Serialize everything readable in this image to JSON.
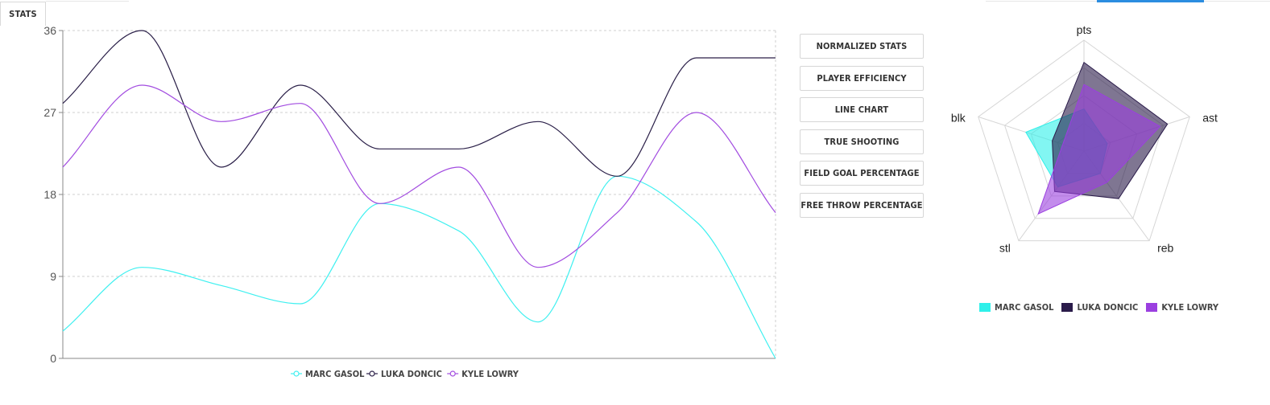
{
  "tabs": {
    "stats_label": "STATS"
  },
  "buttons": [
    "NORMALIZED STATS",
    "PLAYER EFFICIENCY",
    "LINE CHART",
    "TRUE SHOOTING",
    "FIELD GOAL PERCENTAGE",
    "FREE THROW PERCENTAGE"
  ],
  "chart_data": [
    {
      "type": "line",
      "ylim": [
        0,
        36
      ],
      "y_ticks": [
        "0",
        "9",
        "18",
        "27",
        "36"
      ],
      "x": [
        0,
        1,
        2,
        3,
        4,
        5,
        6,
        7,
        8,
        9
      ],
      "grid": true,
      "legend": "bottom",
      "series": [
        {
          "name": "MARC GASOL",
          "color": "#3ff0f0",
          "values": [
            3,
            10,
            8,
            6,
            17,
            14,
            4,
            20,
            15,
            0
          ]
        },
        {
          "name": "LUKA DONCIC",
          "color": "#2a1f48",
          "values": [
            28,
            36,
            21,
            30,
            23,
            23,
            26,
            20,
            33,
            33
          ]
        },
        {
          "name": "KYLE LOWRY",
          "color": "#a24ce0",
          "values": [
            21,
            30,
            26,
            28,
            17,
            21,
            10,
            16,
            27,
            16
          ]
        }
      ]
    },
    {
      "type": "radar",
      "axes": [
        "pts",
        "ast",
        "reb",
        "stl",
        "blk"
      ],
      "rmax": 1,
      "legend": "bottom",
      "series": [
        {
          "name": "MARC GASOL",
          "color": "#2ff0ea",
          "values": [
            0.38,
            0.22,
            0.25,
            0.4,
            0.55
          ]
        },
        {
          "name": "LUKA DONCIC",
          "color": "#2a1b4a",
          "values": [
            0.8,
            0.79,
            0.53,
            0.45,
            0.3
          ]
        },
        {
          "name": "KYLE LOWRY",
          "color": "#9b3fe0",
          "values": [
            0.6,
            0.72,
            0.35,
            0.7,
            0.2
          ]
        }
      ]
    }
  ]
}
